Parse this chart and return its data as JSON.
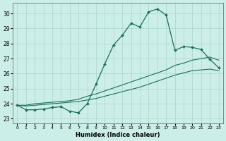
{
  "xlabel": "Humidex (Indice chaleur)",
  "bg_color": "#cceee8",
  "grid_color": "#aad4cc",
  "line_color": "#1a6e5e",
  "xlim": [
    -0.5,
    23.5
  ],
  "ylim": [
    22.7,
    30.7
  ],
  "yticks": [
    23,
    24,
    25,
    26,
    27,
    28,
    29,
    30
  ],
  "xticks": [
    0,
    1,
    2,
    3,
    4,
    5,
    6,
    7,
    8,
    9,
    10,
    11,
    12,
    13,
    14,
    15,
    16,
    17,
    18,
    19,
    20,
    21,
    22,
    23
  ],
  "main_line": [
    23.9,
    23.6,
    23.6,
    23.65,
    23.75,
    23.8,
    23.5,
    23.4,
    24.0,
    25.3,
    26.65,
    27.9,
    28.55,
    29.35,
    29.1,
    30.1,
    30.3,
    29.9,
    27.55,
    27.8,
    27.75,
    27.6,
    26.95,
    26.4
  ],
  "upper_linear": [
    23.9,
    23.9,
    24.0,
    24.05,
    24.1,
    24.15,
    24.2,
    24.3,
    24.5,
    24.65,
    24.85,
    25.05,
    25.25,
    25.45,
    25.65,
    25.85,
    26.05,
    26.25,
    26.55,
    26.7,
    26.9,
    27.0,
    27.1,
    26.9
  ],
  "lower_linear": [
    23.9,
    23.85,
    23.9,
    23.95,
    24.0,
    24.05,
    24.1,
    24.15,
    24.25,
    24.35,
    24.5,
    24.65,
    24.8,
    24.95,
    25.1,
    25.3,
    25.5,
    25.7,
    25.9,
    26.05,
    26.2,
    26.25,
    26.3,
    26.2
  ]
}
